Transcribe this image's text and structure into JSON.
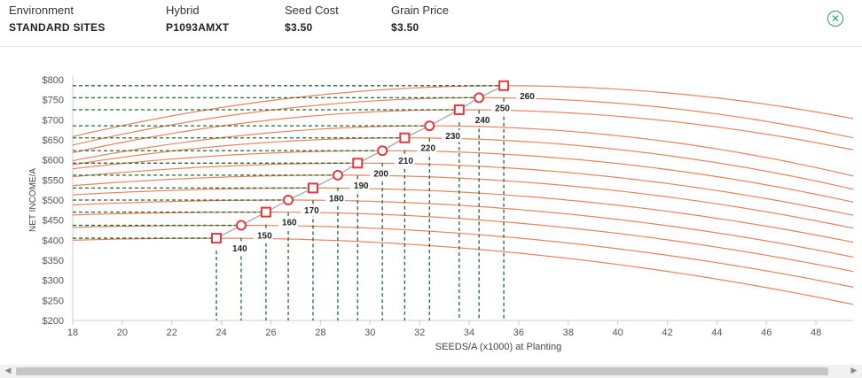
{
  "header": {
    "fields": [
      {
        "label": "Environment",
        "value": "STANDARD SITES"
      },
      {
        "label": "Hybrid",
        "value": "P1093AMXT"
      },
      {
        "label": "Seed Cost",
        "value": "$3.50"
      },
      {
        "label": "Grain Price",
        "value": "$3.50"
      }
    ],
    "close_icon": "circle-x-icon"
  },
  "colors": {
    "curve": "#e8825c",
    "dashed_guides": "#1f6b2f",
    "optimum_line": "#b0b0b0",
    "marker": "#e0393e",
    "close_accent": "#2e9e55"
  },
  "chart_data": {
    "type": "line",
    "title": "",
    "xlabel": "SEEDS/A (x1000) at Planting",
    "ylabel": "NET INCOME/A",
    "xlim": [
      18,
      49.5
    ],
    "ylim": [
      200,
      800
    ],
    "xticks": [
      18,
      20,
      22,
      24,
      26,
      28,
      30,
      32,
      34,
      36,
      38,
      40,
      42,
      44,
      46,
      48
    ],
    "yticks": [
      200,
      250,
      300,
      350,
      400,
      450,
      500,
      550,
      600,
      650,
      700,
      750,
      800
    ],
    "ytick_labels": [
      "$200",
      "$250",
      "$300",
      "$350",
      "$400",
      "$450",
      "$500",
      "$550",
      "$600",
      "$650",
      "$700",
      "$750",
      "$800"
    ],
    "series": [
      {
        "name": "140",
        "marker": "square",
        "optimum": [
          23.8,
          405
        ],
        "start_y": 400,
        "end_y": 240
      },
      {
        "name": "150",
        "marker": "circle",
        "optimum": [
          24.8,
          437
        ],
        "start_y": 432,
        "end_y": 283
      },
      {
        "name": "160",
        "marker": "square",
        "optimum": [
          25.8,
          470
        ],
        "start_y": 463,
        "end_y": 322
      },
      {
        "name": "170",
        "marker": "circle",
        "optimum": [
          26.7,
          500
        ],
        "start_y": 488,
        "end_y": 358
      },
      {
        "name": "180",
        "marker": "square",
        "optimum": [
          27.7,
          530
        ],
        "start_y": 513,
        "end_y": 395
      },
      {
        "name": "190",
        "marker": "circle",
        "optimum": [
          28.7,
          562
        ],
        "start_y": 536,
        "end_y": 430
      },
      {
        "name": "200",
        "marker": "square",
        "optimum": [
          29.5,
          592
        ],
        "start_y": 558,
        "end_y": 462
      },
      {
        "name": "210",
        "marker": "circle",
        "optimum": [
          30.5,
          623
        ],
        "start_y": 578,
        "end_y": 495
      },
      {
        "name": "220",
        "marker": "square",
        "optimum": [
          31.4,
          655
        ],
        "start_y": 588,
        "end_y": 527
      },
      {
        "name": "230",
        "marker": "circle",
        "optimum": [
          32.4,
          685
        ],
        "start_y": 598,
        "end_y": 560
      },
      {
        "name": "240",
        "marker": "square",
        "optimum": [
          33.6,
          725
        ],
        "start_y": 618,
        "end_y": 625
      },
      {
        "name": "250",
        "marker": "circle",
        "optimum": [
          34.4,
          755
        ],
        "start_y": 637,
        "end_y": 655
      },
      {
        "name": "260",
        "marker": "square",
        "optimum": [
          35.4,
          785
        ],
        "start_y": 658,
        "end_y": 703
      }
    ],
    "grid": false,
    "legend": "inline labels at optimum points"
  },
  "scrollbar": {
    "left_icon": "arrow-left-icon",
    "right_icon": "arrow-right-icon"
  }
}
